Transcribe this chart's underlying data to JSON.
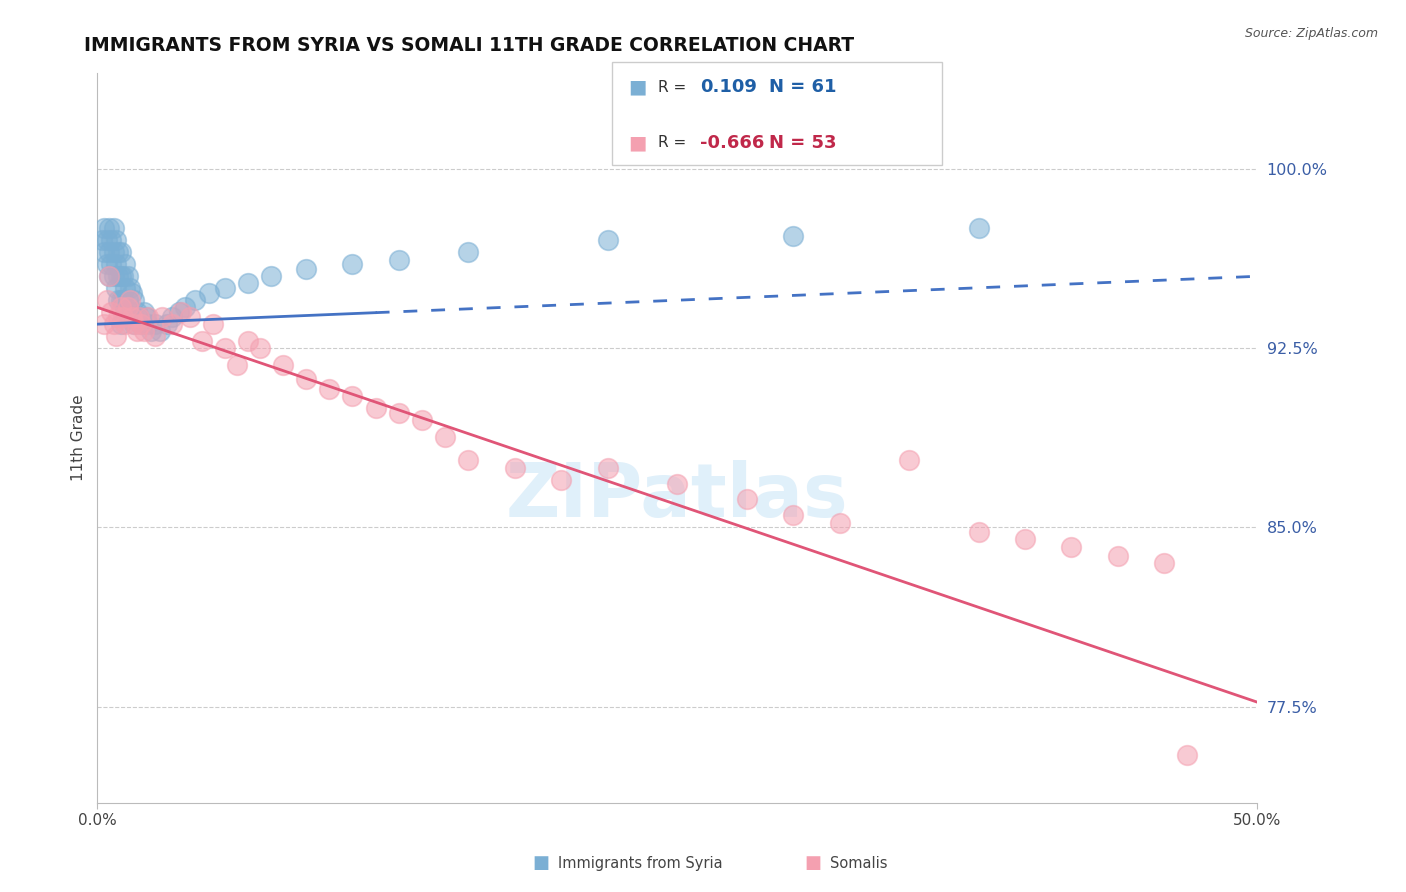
{
  "title": "IMMIGRANTS FROM SYRIA VS SOMALI 11TH GRADE CORRELATION CHART",
  "source": "Source: ZipAtlas.com",
  "ylabel": "11th Grade",
  "ytick_labels": [
    "100.0%",
    "92.5%",
    "85.0%",
    "77.5%"
  ],
  "ytick_values": [
    1.0,
    0.925,
    0.85,
    0.775
  ],
  "xlim": [
    0.0,
    0.5
  ],
  "ylim": [
    0.735,
    1.04
  ],
  "syria_color": "#7BAFD4",
  "somali_color": "#F4A0B0",
  "syria_line_color": "#4472C4",
  "somali_line_color": "#E05577",
  "syria_R": 0.109,
  "syria_N": 61,
  "somali_R": -0.666,
  "somali_N": 53,
  "grid_color": "#CCCCCC",
  "watermark": "ZIPatlas",
  "syria_x": [
    0.002,
    0.003,
    0.003,
    0.004,
    0.004,
    0.005,
    0.005,
    0.005,
    0.006,
    0.006,
    0.007,
    0.007,
    0.007,
    0.008,
    0.008,
    0.008,
    0.009,
    0.009,
    0.009,
    0.01,
    0.01,
    0.01,
    0.01,
    0.011,
    0.011,
    0.012,
    0.012,
    0.012,
    0.013,
    0.013,
    0.014,
    0.014,
    0.015,
    0.015,
    0.016,
    0.016,
    0.017,
    0.018,
    0.019,
    0.02,
    0.021,
    0.022,
    0.023,
    0.025,
    0.027,
    0.03,
    0.032,
    0.035,
    0.038,
    0.042,
    0.048,
    0.055,
    0.065,
    0.075,
    0.09,
    0.11,
    0.13,
    0.16,
    0.22,
    0.3,
    0.38
  ],
  "syria_y": [
    0.97,
    0.975,
    0.965,
    0.97,
    0.96,
    0.975,
    0.965,
    0.955,
    0.97,
    0.96,
    0.975,
    0.965,
    0.955,
    0.97,
    0.96,
    0.95,
    0.965,
    0.955,
    0.945,
    0.965,
    0.955,
    0.945,
    0.935,
    0.955,
    0.945,
    0.96,
    0.95,
    0.94,
    0.955,
    0.945,
    0.95,
    0.94,
    0.948,
    0.938,
    0.945,
    0.935,
    0.94,
    0.938,
    0.935,
    0.94,
    0.938,
    0.935,
    0.932,
    0.935,
    0.932,
    0.935,
    0.938,
    0.94,
    0.942,
    0.945,
    0.948,
    0.95,
    0.952,
    0.955,
    0.958,
    0.96,
    0.962,
    0.965,
    0.97,
    0.972,
    0.975
  ],
  "somali_x": [
    0.003,
    0.004,
    0.005,
    0.006,
    0.007,
    0.008,
    0.009,
    0.01,
    0.011,
    0.012,
    0.013,
    0.014,
    0.015,
    0.016,
    0.017,
    0.018,
    0.019,
    0.02,
    0.022,
    0.025,
    0.028,
    0.032,
    0.036,
    0.04,
    0.045,
    0.05,
    0.055,
    0.06,
    0.065,
    0.07,
    0.08,
    0.09,
    0.1,
    0.11,
    0.12,
    0.13,
    0.14,
    0.15,
    0.16,
    0.18,
    0.2,
    0.22,
    0.25,
    0.28,
    0.3,
    0.32,
    0.35,
    0.38,
    0.4,
    0.42,
    0.44,
    0.46,
    0.47
  ],
  "somali_y": [
    0.935,
    0.945,
    0.955,
    0.94,
    0.935,
    0.93,
    0.938,
    0.942,
    0.938,
    0.935,
    0.942,
    0.945,
    0.938,
    0.935,
    0.932,
    0.938,
    0.935,
    0.932,
    0.938,
    0.93,
    0.938,
    0.935,
    0.94,
    0.938,
    0.928,
    0.935,
    0.925,
    0.918,
    0.928,
    0.925,
    0.918,
    0.912,
    0.908,
    0.905,
    0.9,
    0.898,
    0.895,
    0.888,
    0.878,
    0.875,
    0.87,
    0.875,
    0.868,
    0.862,
    0.855,
    0.852,
    0.878,
    0.848,
    0.845,
    0.842,
    0.838,
    0.835,
    0.755
  ],
  "legend_text_color": "#333333",
  "legend_value_color_syria": "#1F5FA6",
  "legend_value_color_somali": "#C0284A",
  "bottom_legend_items": [
    {
      "label": "Immigrants from Syria",
      "color": "#7BAFD4"
    },
    {
      "label": "Somalis",
      "color": "#F4A0B0"
    }
  ]
}
